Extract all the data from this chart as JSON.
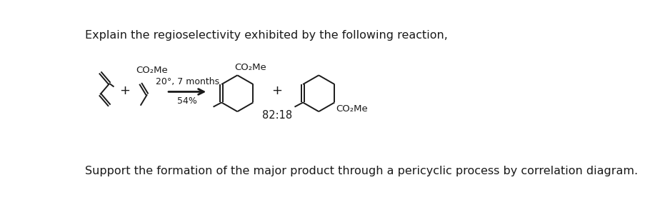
{
  "title_text": "Explain the regioselectivity exhibited by the following reaction,",
  "footer_text": "Support the formation of the major product through a pericyclic process by correlation diagram.",
  "condition_line1": "20°, 7 months",
  "condition_line2": "54%",
  "ratio_text": "82:18",
  "plus_sign": "+",
  "co2me_label": "CO₂Me",
  "bg_color": "#ffffff",
  "text_color": "#1a1a1a",
  "title_fontsize": 11.5,
  "footer_fontsize": 11.5,
  "chem_fontsize": 9.5,
  "ratio_fontsize": 10.5,
  "condition_fontsize": 9.0,
  "figw": 9.04,
  "figh": 2.94,
  "dpi": 100
}
